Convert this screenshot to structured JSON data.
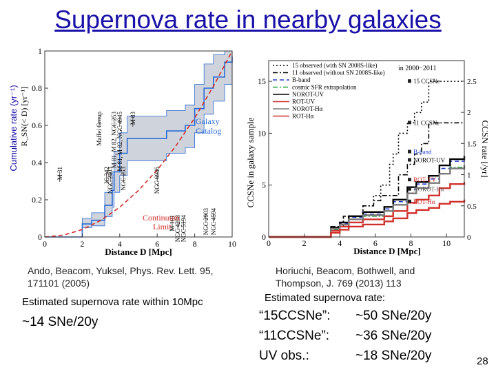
{
  "title": "Supernova rate in nearby galaxies",
  "outer_ylabel": "Cumulative rate (yr⁻¹)",
  "left_citation": [
    "Ando, Beacom, Yuksel, Phys. Rev. Lett. 95,",
    "171101 (2005)"
  ],
  "left_estimate_label": "Estimated supernova rate within 10Mpc",
  "left_estimate_value": "~14 SNe/20y",
  "right_citation": [
    "Horiuchi,  Beacom, Bothwell, and",
    "Thompson, J. 769 (2013) 113"
  ],
  "right_estimate_label": "Estimated supernova rate:",
  "right_estimates": [
    {
      "label": "“15CCSNe”:",
      "value": "~50 SNe/20y"
    },
    {
      "label": "“11CCSNe”:",
      "value": "~36 SNe/20y"
    },
    {
      "label": "UV obs.:",
      "value": "~18 SNe/20y"
    }
  ],
  "page_number": "28",
  "colors": {
    "title": "#1a12a8",
    "band": "#cfd3dc",
    "catalog": "#2a6bd8",
    "continuum": "#d0302a"
  },
  "chart_data": [
    {
      "type": "line",
      "xlabel": "Distance D [Mpc]",
      "ylabel": "R_SN(< D) [yr⁻¹]",
      "xlim": [
        0,
        10
      ],
      "ylim": [
        0,
        1
      ],
      "xticks": [
        "0",
        "2",
        "4",
        "6",
        "8",
        "10"
      ],
      "yticks": [
        "0",
        "0.2",
        "0.4",
        "0.6",
        "0.8",
        "1"
      ],
      "series": [
        {
          "name": "Galaxy Catalog",
          "color": "#2a6bd8",
          "style": "solid",
          "x": [
            0,
            2.0,
            2.5,
            3.2,
            3.6,
            3.7,
            4.0,
            4.4,
            6.5,
            7.5,
            8.0,
            8.5,
            9.0,
            9.6,
            10
          ],
          "y": [
            0,
            0.07,
            0.09,
            0.17,
            0.25,
            0.35,
            0.45,
            0.53,
            0.57,
            0.6,
            0.69,
            0.8,
            0.86,
            0.94,
            0.97
          ]
        },
        {
          "name": "band_upper",
          "x": [
            0,
            2.0,
            2.5,
            3.2,
            3.6,
            3.7,
            4.0,
            4.4,
            6.5,
            7.5,
            8.0,
            8.5,
            9.0,
            9.6,
            10
          ],
          "y": [
            0,
            0.1,
            0.13,
            0.24,
            0.35,
            0.46,
            0.56,
            0.65,
            0.68,
            0.71,
            0.82,
            0.93,
            0.98,
            1.0,
            1.0
          ]
        },
        {
          "name": "band_lower",
          "x": [
            0,
            2.0,
            2.5,
            3.2,
            3.6,
            3.7,
            4.0,
            4.4,
            6.5,
            7.5,
            8.0,
            8.5,
            9.0,
            9.6,
            10
          ],
          "y": [
            0,
            0.05,
            0.06,
            0.11,
            0.16,
            0.24,
            0.33,
            0.41,
            0.45,
            0.48,
            0.56,
            0.66,
            0.73,
            0.82,
            0.86
          ]
        },
        {
          "name": "Continuum Limit",
          "color": "#d0302a",
          "style": "dashed",
          "x": [
            0,
            1,
            2,
            3,
            4,
            5,
            6,
            7,
            8,
            9,
            10
          ],
          "y": [
            0,
            0.01,
            0.04,
            0.09,
            0.16,
            0.25,
            0.36,
            0.49,
            0.64,
            0.81,
            1.0
          ]
        }
      ],
      "annotations": [
        {
          "text": "M 31",
          "x": 0.8
        },
        {
          "text": "Maffei Group",
          "x": 2.9
        },
        {
          "text": "IC 342",
          "x": 3.3
        },
        {
          "text": "M 81, M 82, NGC 253",
          "x": 3.7
        },
        {
          "text": "NGC 2403",
          "x": 3.5
        },
        {
          "text": "M 81, M 82, NGC 4945",
          "x": 4.0
        },
        {
          "text": "NGC 253",
          "x": 4.2
        },
        {
          "text": "M 83",
          "x": 4.7
        },
        {
          "text": "NGC 6946",
          "x": 6.0
        },
        {
          "text": "M 101",
          "x": 6.8
        },
        {
          "text": "NGC 4258",
          "x": 7.1
        },
        {
          "text": "NGC 5194",
          "x": 7.4
        },
        {
          "text": "NGC 2903",
          "x": 8.6
        },
        {
          "text": "NGC 4594",
          "x": 9.0
        }
      ],
      "curve_labels": [
        "Galaxy Catalog",
        "Continuum Limit"
      ]
    },
    {
      "type": "line",
      "xlabel": "Distance D [Mpc]",
      "ylabel": "CCSNe in galaxy sample",
      "ylabel_right": "CCSN rate [/yr]",
      "xlim": [
        0,
        11
      ],
      "ylim": [
        0,
        17
      ],
      "ylim_right": [
        0,
        2.83
      ],
      "xticks": [
        "0",
        "2",
        "4",
        "6",
        "8",
        "10"
      ],
      "yticks": [
        "0",
        "5",
        "10",
        "15"
      ],
      "yticks_right": [
        "0",
        "0.5",
        "1",
        "1.5",
        "2",
        "2.5"
      ],
      "in_label": "in 2000−2011",
      "legend": [
        {
          "text": "15 observed (with SN 2008S-like)",
          "color": "#000000",
          "style": "dotted"
        },
        {
          "text": "11 observed (without SN 2008S-like)",
          "color": "#000000",
          "style": "dashdot"
        },
        {
          "text": "B-band",
          "color": "#1e3ed0",
          "style": "dashed"
        },
        {
          "text": "cosmic SFR extrapolation",
          "color": "#1fa33a",
          "style": "dashdot"
        },
        {
          "text": "NOROT-UV",
          "color": "#000000",
          "style": "solid"
        },
        {
          "text": "ROT-UV",
          "color": "#d0302a",
          "style": "solid"
        },
        {
          "text": "NOROT-Hα",
          "color": "#7a7a7a",
          "style": "solid"
        },
        {
          "text": "ROT-Hα",
          "color": "#d0302a",
          "style": "solid"
        }
      ],
      "series": [
        {
          "name": "15 observed (with SN 2008S-like)",
          "color": "#000000",
          "style": "dotted",
          "x": [
            0,
            3.5,
            4.2,
            5.3,
            5.9,
            6.3,
            6.8,
            7.0,
            7.3,
            7.8,
            8.2,
            8.6,
            9.0,
            11
          ],
          "y": [
            0,
            1,
            2,
            3,
            4,
            5,
            7,
            8,
            10,
            11,
            12,
            13,
            15,
            15
          ]
        },
        {
          "name": "11 observed (without SN 2008S-like)",
          "color": "#000000",
          "style": "dashdot",
          "x": [
            0,
            3.5,
            4.2,
            5.3,
            5.9,
            6.3,
            7.3,
            7.8,
            8.2,
            8.6,
            9.0,
            11
          ],
          "y": [
            0,
            1,
            2,
            3,
            3.5,
            4,
            6,
            7,
            8,
            9,
            11,
            11
          ]
        },
        {
          "name": "B-band",
          "color": "#1e3ed0",
          "style": "dashed",
          "x": [
            0,
            3.5,
            4.0,
            4.5,
            5.3,
            6.5,
            7.0,
            7.8,
            8.3,
            9.0,
            9.6,
            10.2,
            11
          ],
          "y": [
            0,
            0.8,
            1.3,
            1.9,
            2.2,
            2.7,
            3.4,
            4.6,
            5.1,
            5.6,
            6.6,
            7.3,
            7.6
          ]
        },
        {
          "name": "cosmic SFR extrapolation",
          "color": "#1fa33a",
          "style": "dashdot",
          "x": [
            0,
            3.5,
            4.0,
            4.5,
            5.3,
            6.5,
            7.0,
            7.8,
            8.3,
            9.0,
            9.6,
            10.2,
            11
          ],
          "y": [
            0,
            0.7,
            1.2,
            1.7,
            2.0,
            2.5,
            3.1,
            4.2,
            4.7,
            5.2,
            6.1,
            6.7,
            7.0
          ]
        },
        {
          "name": "NOROT-UV",
          "color": "#000000",
          "style": "solid",
          "x": [
            0,
            3.5,
            4.0,
            4.5,
            5.3,
            6.5,
            7.0,
            7.8,
            8.3,
            9.0,
            9.6,
            10.2,
            11
          ],
          "y": [
            0,
            0.9,
            1.4,
            2.0,
            2.4,
            2.9,
            3.6,
            4.8,
            5.3,
            5.9,
            6.9,
            7.5,
            7.8
          ]
        },
        {
          "name": "ROT-UV",
          "color": "#d0302a",
          "style": "solid",
          "x": [
            0,
            3.5,
            4.0,
            4.5,
            5.3,
            6.5,
            7.0,
            7.8,
            8.3,
            9.0,
            9.6,
            10.2,
            11
          ],
          "y": [
            0,
            0.6,
            1.0,
            1.4,
            1.7,
            2.0,
            2.5,
            3.3,
            3.6,
            4.0,
            4.7,
            5.1,
            5.3
          ]
        },
        {
          "name": "NOROT-Hα",
          "color": "#7a7a7a",
          "style": "solid",
          "x": [
            0,
            3.5,
            4.0,
            4.5,
            5.3,
            6.5,
            7.0,
            7.8,
            8.3,
            9.0,
            9.6,
            10.2,
            11
          ],
          "y": [
            0,
            0.8,
            1.2,
            1.7,
            2.1,
            2.5,
            3.1,
            4.2,
            4.7,
            5.2,
            6.1,
            6.6,
            6.9
          ]
        },
        {
          "name": "ROT-Hα",
          "color": "#d0302a",
          "style": "solid",
          "x": [
            0,
            3.5,
            4.0,
            4.5,
            5.3,
            6.5,
            7.0,
            7.8,
            8.3,
            9.0,
            9.6,
            10.2,
            11
          ],
          "y": [
            0,
            0.4,
            0.7,
            1.0,
            1.2,
            1.5,
            1.8,
            2.3,
            2.6,
            2.8,
            3.2,
            3.4,
            3.6
          ]
        }
      ],
      "end_labels": [
        {
          "text": "15 CCSNe",
          "y": 15
        },
        {
          "text": "11 CCSNe",
          "y": 11
        },
        {
          "text": "B-band",
          "y": 8.2
        },
        {
          "text": "NOROT-UV",
          "y": 7.4
        },
        {
          "text": "ROT-UV",
          "y": 5.5
        },
        {
          "text": "NOROT-Hα",
          "y": 4.6
        },
        {
          "text": "ROT-Hα",
          "y": 3.4
        }
      ]
    }
  ]
}
